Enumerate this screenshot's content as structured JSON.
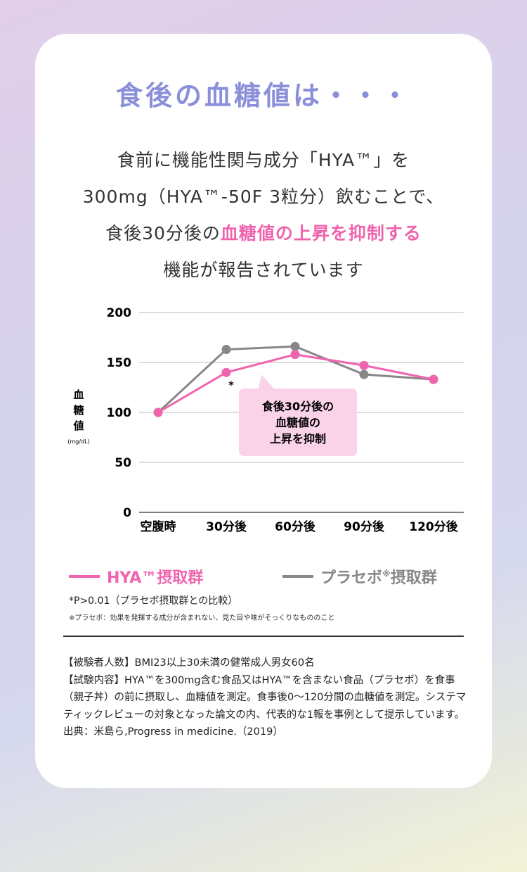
{
  "title": "食後の血糖値は・・・",
  "lead": {
    "line1": "食前に機能性関与成分「HYA™」を",
    "line2": "300mg（HYA™-50F 3粒分）飲むことで、",
    "line3_pre": "食後30分後の",
    "line3_hl": "血糖値の上昇を抑制する",
    "line4": "機能が報告されています"
  },
  "chart_data": {
    "type": "line",
    "ylabel": "血糖値",
    "yunit": "(mg/dL)",
    "ylim": [
      0,
      200
    ],
    "yticks": [
      0,
      50,
      100,
      150,
      200
    ],
    "categories": [
      "空腹時",
      "30分後",
      "60分後",
      "90分後",
      "120分後"
    ],
    "series": [
      {
        "name": "プラセボ※摂取群",
        "color": "#878787",
        "values": [
          100,
          163,
          166,
          138,
          133
        ]
      },
      {
        "name": "HYA™摂取群",
        "color": "#f064ae",
        "values": [
          100,
          140,
          158,
          147,
          133
        ]
      }
    ],
    "annotation_star": "*",
    "callout": [
      "食後30分後の",
      "血糖値の",
      "上昇を抑制"
    ]
  },
  "legend": {
    "hya": "HYA™摂取群",
    "placebo_main": "プラセボ",
    "placebo_mark": "※",
    "placebo_tail": "摂取群"
  },
  "notes": {
    "p": "*P>0.01（プラセボ摂取群との比較）",
    "placebo_def": "※プラセボ：効果を発揮する成分が含まれない、見た目や味がそっくりなもののこと"
  },
  "footer": [
    "【被験者人数】BMI23以上30未満の健常成人男女60名",
    "【試験内容】HYA™を300mg含む食品又はHYA™を含まない食品（プラセボ）を食事（親子丼）の前に摂取し、血糖値を測定。食事後0〜120分間の血糖値を測定。システマティックレビューの対象となった論文の内、代表的な1報を事例として提示しています。",
    "出典：米島ら,Progress in medicine.（2019）"
  ]
}
